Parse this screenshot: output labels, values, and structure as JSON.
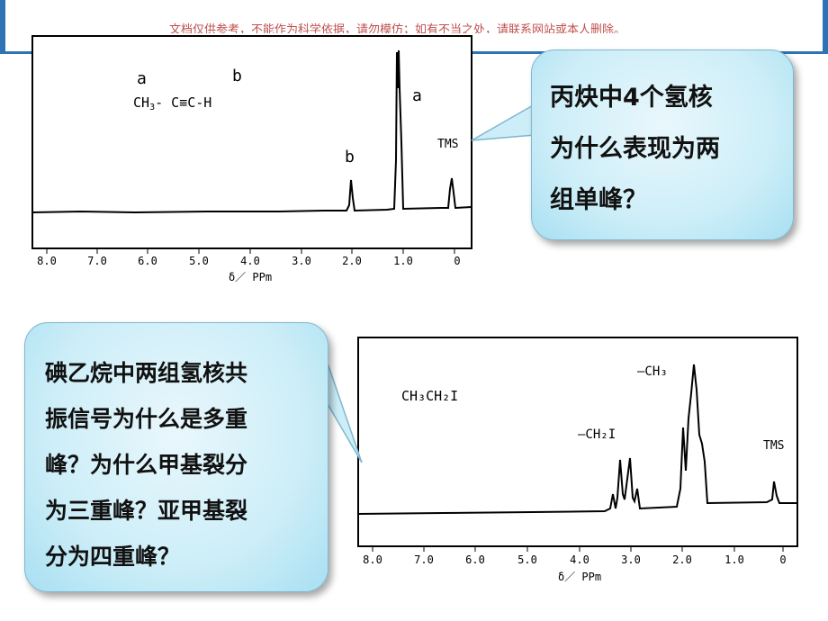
{
  "header": {
    "watermark": "文档仅供参考，不能作为科学依据，请勿模仿；如有不当之处，请联系网站或本人删除。"
  },
  "spectrum1": {
    "molecule_left": "CH",
    "molecule_sub": "3",
    "molecule_right": "- C≡C-H",
    "label_a_molecule": "a",
    "label_b_molecule": "b",
    "peak_label_a": "a",
    "peak_label_b": "b",
    "peak_label_tms": "TMS",
    "axis_label": "δ／ PPm",
    "ticks": [
      "8.0",
      "7.0",
      "6.0",
      "5.0",
      "4.0",
      "3.0",
      "2.0",
      "1.0",
      "0"
    ]
  },
  "spectrum2": {
    "molecule": "CH₃CH₂I",
    "peak_label_ch3": "—CH₃",
    "peak_label_ch2i": "—CH₂I",
    "peak_label_tms": "TMS",
    "axis_label": "δ／ PPm",
    "ticks": [
      "8.0",
      "7.0",
      "6.0",
      "5.0",
      "4.0",
      "3.0",
      "2.0",
      "1.0",
      "0"
    ]
  },
  "questions": {
    "q1_lines": [
      "丙炔中4个氢核",
      "为什么表现为两",
      "组单峰？"
    ],
    "q2_lines": [
      "碘乙烷中两组氢核共",
      "振信号为什么是多重",
      "峰？为什么甲基裂分",
      "为三重峰？亚甲基裂",
      "分为四重峰？"
    ]
  },
  "colors": {
    "accent": "#2e74b5",
    "watermark": "#c0504d",
    "bubble": "#cdeef8"
  }
}
